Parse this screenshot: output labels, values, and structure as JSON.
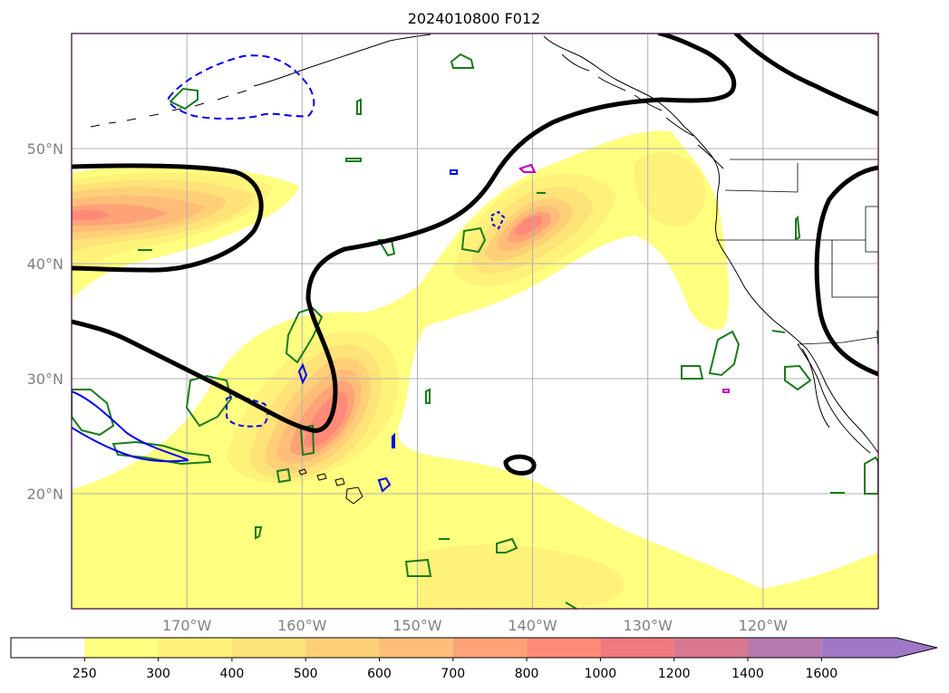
{
  "title": "2024010800 F012",
  "map": {
    "extent_lon": [
      -180,
      -110
    ],
    "extent_lat": [
      10,
      60
    ],
    "lat_gridlines": [
      20,
      30,
      40,
      50
    ],
    "lon_gridlines": [
      -170,
      -160,
      -150,
      -140,
      -130,
      -120
    ],
    "lat_labels": [
      {
        "lat": 50,
        "text": "50°N"
      },
      {
        "lat": 40,
        "text": "40°N"
      },
      {
        "lat": 30,
        "text": "30°N"
      },
      {
        "lat": 20,
        "text": "20°N"
      }
    ],
    "lon_labels": [
      {
        "lon": -170,
        "text": "170°W"
      },
      {
        "lon": -160,
        "text": "160°W"
      },
      {
        "lon": -150,
        "text": "150°W"
      },
      {
        "lon": -140,
        "text": "140°W"
      },
      {
        "lon": -130,
        "text": "130°W"
      },
      {
        "lon": -120,
        "text": "120°W"
      }
    ],
    "colors": {
      "gridline": "#b0b0b0",
      "coastline": "#000000",
      "contour_main": "#000000",
      "contour_green": "#1a7a1a",
      "contour_blue": "#0000ee",
      "contour_magenta": "#bb00bb",
      "frame": "#330033",
      "label": "#808080"
    }
  },
  "colorbar": {
    "levels": [
      250,
      300,
      400,
      500,
      600,
      700,
      800,
      1000,
      1200,
      1400,
      1600
    ],
    "colors": [
      "#ffff80",
      "#fff27a",
      "#ffe278",
      "#ffd078",
      "#ffbe78",
      "#ffa278",
      "#ff8a78",
      "#f07880",
      "#d87890",
      "#b878b0",
      "#a078c8"
    ],
    "under_color": "#ffffff",
    "extend": "max",
    "tick_labels": [
      "250",
      "300",
      "400",
      "500",
      "600",
      "700",
      "800",
      "1000",
      "1200",
      "1400",
      "1600"
    ]
  }
}
